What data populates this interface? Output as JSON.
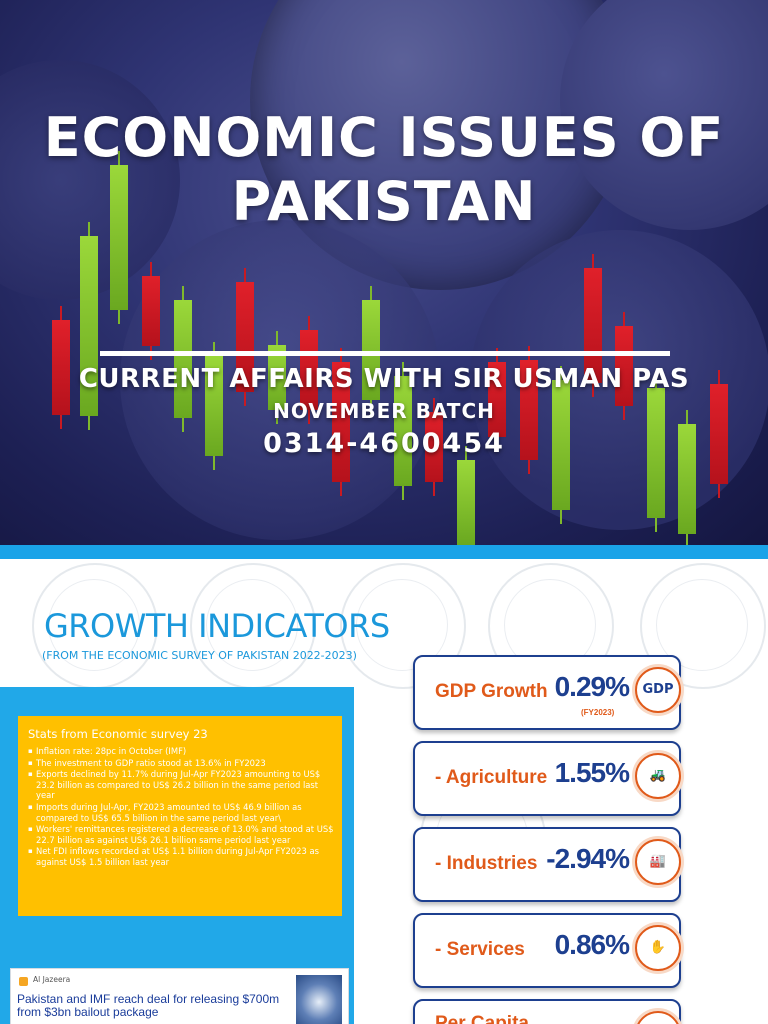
{
  "cover": {
    "title_line1": "ECONOMIC ISSUES OF",
    "title_line2": "PAKISTAN",
    "subtitle": "CURRENT AFFAIRS WITH SIR USMAN PAS",
    "batch": "NOVEMBER BATCH",
    "phone": "0314-4600454"
  },
  "growth": {
    "title": "GROWTH INDICATORS",
    "subtitle": "(FROM THE ECONOMIC SURVEY OF PAKISTAN 2022-2023)",
    "stats_heading": "Stats from Economic survey 23",
    "stats": [
      "Inflation rate: 28pc in October (IMF)",
      "The investment to GDP ratio stood at 13.6% in FY2023",
      "Exports declined by 11.7% during Jul-Apr FY2023 amounting to US$ 23.2 billion as compared to US$ 26.2 billion in the same period last year",
      "Imports during Jul-Apr, FY2023 amounted to US$ 46.9 billion as compared to US$ 65.5 billion in the same period last year\\",
      "Workers' remittances registered a decrease of 13.0% and stood at US$ 22.7 billion as against US$ 26.1 billion same period last year",
      "Net FDI inflows recorded at US$ 1.1 billion during Jul-Apr FY2023 as against US$ 1.5 billion last year"
    ],
    "news": {
      "source": "Al Jazeera",
      "headline": "Pakistan and IMF reach deal for releasing $700m from $3bn bailout package"
    },
    "indicators": [
      {
        "label": "GDP Growth",
        "value": "0.29%",
        "arrow": "↑",
        "note": "(FY2023)",
        "icon": "GDP"
      },
      {
        "label": "- Agriculture",
        "value": "1.55%",
        "arrow": "↑",
        "note": "",
        "icon": "🚜"
      },
      {
        "label": "- Industries",
        "value": "-2.94%",
        "arrow": "↓",
        "note": "",
        "icon": "🏭"
      },
      {
        "label": "- Services",
        "value": "0.86%",
        "arrow": "↑",
        "note": "",
        "icon": "✋"
      },
      {
        "label": "Per Capita",
        "value": "",
        "arrow": "",
        "note": "",
        "icon": ""
      }
    ]
  }
}
